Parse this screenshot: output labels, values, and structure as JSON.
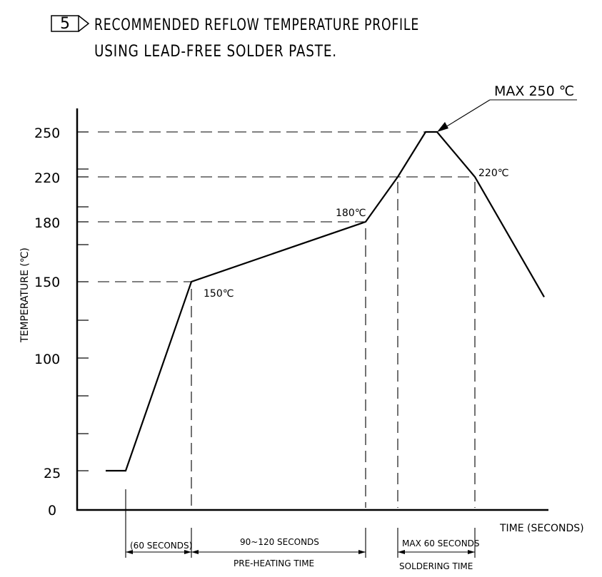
{
  "note_number": "5",
  "title_lines": [
    "RECOMMENDED REFLOW TEMPERATURE PROFILE",
    "USING LEAD-FREE SOLDER PASTE."
  ],
  "max_label": "MAX 250 ℃",
  "chart_data": {
    "type": "line",
    "ylabel": "TEMPERATURE (℃)",
    "xlabel": "TIME (SECONDS)",
    "yticks": [
      "250",
      "220",
      "180",
      "150",
      "100",
      "25",
      "0"
    ],
    "series": [
      {
        "points": [
          [
            0,
            25
          ],
          [
            25,
            25
          ],
          [
            110,
            150
          ],
          [
            340,
            180
          ],
          [
            380,
            220
          ],
          [
            420,
            250
          ],
          [
            430,
            250
          ],
          [
            480,
            220
          ],
          [
            570,
            140
          ]
        ]
      }
    ],
    "annotations": [
      {
        "text": "150℃"
      },
      {
        "text": "180℃"
      },
      {
        "text": "220℃"
      }
    ],
    "intervals": [
      {
        "label": "(60 SECONDS)",
        "caption": ""
      },
      {
        "label": "90~120 SECONDS",
        "caption": "PRE-HEATING TIME"
      },
      {
        "label": "MAX 60 SECONDS",
        "caption": "SOLDERING TIME"
      }
    ]
  }
}
